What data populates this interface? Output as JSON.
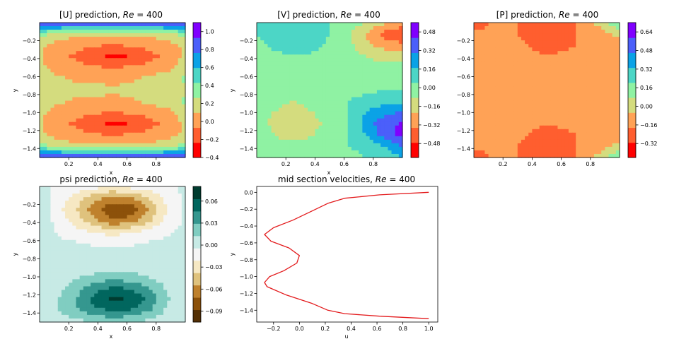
{
  "figure": {
    "background": "#ffffff"
  },
  "chart_data": [
    {
      "id": "u",
      "type": "heatmap",
      "title_prefix": "[U] prediction, ",
      "title_math": "Re",
      "title_suffix": " = 400",
      "xlabel": "x",
      "ylabel": "y",
      "xlim": [
        0.0,
        1.0
      ],
      "ylim": [
        -1.5,
        0.0
      ],
      "xticks": [
        0.2,
        0.4,
        0.6,
        0.8
      ],
      "xticklabels": [
        "0.2",
        "0.4",
        "0.6",
        "0.8"
      ],
      "yticks": [
        -0.2,
        -0.4,
        -0.6,
        -0.8,
        -1.0,
        -1.2,
        -1.4
      ],
      "yticklabels": [
        "−0.2",
        "−0.4",
        "−0.6",
        "−0.8",
        "−1.0",
        "−1.2",
        "−1.4"
      ],
      "colormap": "rainbow",
      "colorbar_range": [
        -0.4,
        1.1
      ],
      "colorbar_ticks": [
        1.0,
        0.8,
        0.6,
        0.4,
        0.2,
        0.0,
        -0.2,
        -0.4
      ],
      "colorbar_ticklabels": [
        "1.0",
        "0.8",
        "0.6",
        "0.4",
        "0.2",
        "0.0",
        "−0.2",
        "−0.4"
      ],
      "colorbar_colors": [
        "#ff0000",
        "#ff5e2f",
        "#ffa256",
        "#d4dc7e",
        "#8ff2a3",
        "#4cd6c6",
        "#0ba2e6",
        "#4b5ffa",
        "#8000ff"
      ],
      "field_range": [
        -0.4,
        1.1
      ],
      "field": [
        [
          1.0,
          1.05,
          1.0,
          1.0,
          1.0,
          1.0,
          1.0,
          1.05,
          1.0
        ],
        [
          0.35,
          0.2,
          0.12,
          0.1,
          0.1,
          0.1,
          0.12,
          0.2,
          0.35
        ],
        [
          0.1,
          0.0,
          -0.05,
          -0.1,
          -0.12,
          -0.1,
          -0.05,
          0.0,
          0.1
        ],
        [
          0.1,
          -0.05,
          -0.15,
          -0.25,
          -0.35,
          -0.3,
          -0.2,
          -0.05,
          0.1
        ],
        [
          0.1,
          0.0,
          -0.05,
          -0.1,
          -0.12,
          -0.1,
          -0.05,
          0.0,
          0.15
        ],
        [
          0.15,
          0.1,
          0.05,
          0.05,
          0.02,
          0.05,
          0.1,
          0.2,
          0.3
        ],
        [
          0.2,
          0.15,
          0.1,
          0.1,
          0.1,
          0.1,
          0.15,
          0.2,
          0.2
        ],
        [
          0.15,
          0.1,
          0.05,
          0.05,
          0.02,
          0.05,
          0.1,
          0.2,
          0.3
        ],
        [
          0.1,
          0.0,
          -0.05,
          -0.1,
          -0.12,
          -0.1,
          -0.05,
          0.0,
          0.15
        ],
        [
          0.1,
          -0.05,
          -0.15,
          -0.25,
          -0.35,
          -0.3,
          -0.2,
          -0.05,
          0.1
        ],
        [
          0.1,
          0.0,
          -0.05,
          -0.1,
          -0.12,
          -0.1,
          -0.05,
          0.0,
          0.1
        ],
        [
          0.35,
          0.2,
          0.12,
          0.1,
          0.1,
          0.1,
          0.12,
          0.2,
          0.35
        ],
        [
          1.0,
          1.05,
          1.0,
          1.0,
          1.0,
          1.0,
          1.0,
          1.05,
          1.0
        ]
      ]
    },
    {
      "id": "v",
      "type": "heatmap",
      "title_prefix": "[V] prediction, ",
      "title_math": "Re",
      "title_suffix": " = 400",
      "xlabel": "x",
      "ylabel": "y",
      "xlim": [
        0.0,
        1.0
      ],
      "ylim": [
        -1.5,
        0.0
      ],
      "xticks": [
        0.2,
        0.4,
        0.6,
        0.8
      ],
      "xticklabels": [
        "0.2",
        "0.4",
        "0.6",
        "0.8"
      ],
      "yticks": [
        -0.2,
        -0.4,
        -0.6,
        -0.8,
        -1.0,
        -1.2,
        -1.4
      ],
      "yticklabels": [
        "−0.2",
        "−0.4",
        "−0.6",
        "−0.8",
        "−1.0",
        "−1.2",
        "−1.4"
      ],
      "colormap": "rainbow",
      "colorbar_range": [
        -0.6,
        0.56
      ],
      "colorbar_ticks": [
        0.48,
        0.32,
        0.16,
        0.0,
        -0.16,
        -0.32,
        -0.48
      ],
      "colorbar_ticklabels": [
        "0.48",
        "0.32",
        "0.16",
        "0.00",
        "−0.16",
        "−0.32",
        "−0.48"
      ],
      "colorbar_colors": [
        "#ff0000",
        "#ff5e2f",
        "#ffa256",
        "#d4dc7e",
        "#8ff2a3",
        "#4cd6c6",
        "#0ba2e6",
        "#4b5ffa",
        "#8000ff"
      ],
      "field_range": [
        -0.6,
        0.56
      ],
      "field": [
        [
          0.1,
          0.12,
          0.12,
          0.1,
          0.05,
          0.0,
          -0.1,
          -0.2,
          -0.3
        ],
        [
          0.05,
          0.15,
          0.2,
          0.18,
          0.05,
          -0.05,
          -0.25,
          -0.45,
          -0.5
        ],
        [
          0.0,
          0.1,
          0.15,
          0.12,
          0.02,
          -0.05,
          -0.2,
          -0.3,
          -0.35
        ],
        [
          -0.05,
          0.0,
          0.05,
          0.02,
          0.0,
          -0.02,
          -0.1,
          -0.15,
          -0.15
        ],
        [
          -0.05,
          -0.05,
          -0.05,
          -0.02,
          0.0,
          0.0,
          -0.02,
          -0.05,
          -0.05
        ],
        [
          0.0,
          -0.05,
          -0.05,
          -0.05,
          0.0,
          0.0,
          0.0,
          0.0,
          0.0
        ],
        [
          0.0,
          -0.05,
          -0.05,
          -0.05,
          0.0,
          0.0,
          0.02,
          0.05,
          0.05
        ],
        [
          -0.05,
          -0.05,
          -0.1,
          -0.05,
          0.0,
          0.05,
          0.1,
          0.15,
          0.15
        ],
        [
          -0.05,
          -0.1,
          -0.15,
          -0.1,
          -0.02,
          0.05,
          0.2,
          0.3,
          0.35
        ],
        [
          -0.05,
          -0.12,
          -0.2,
          -0.15,
          -0.05,
          0.05,
          0.25,
          0.45,
          0.5
        ],
        [
          0.0,
          -0.1,
          -0.15,
          -0.1,
          -0.02,
          0.05,
          0.2,
          0.4,
          0.55
        ],
        [
          0.0,
          -0.05,
          -0.05,
          -0.05,
          0.0,
          0.05,
          0.1,
          0.2,
          0.35
        ],
        [
          0.0,
          0.0,
          0.0,
          0.0,
          0.0,
          0.0,
          0.05,
          0.1,
          0.2
        ]
      ]
    },
    {
      "id": "p",
      "type": "heatmap",
      "title_prefix": "[P] prediction, ",
      "title_math": "Re",
      "title_suffix": " = 400",
      "xlabel": "",
      "ylabel": "",
      "xlim": [
        0.0,
        1.0
      ],
      "ylim": [
        -1.5,
        0.0
      ],
      "xticks": [
        0.2,
        0.4,
        0.6,
        0.8
      ],
      "xticklabels": [
        "0.2",
        "0.4",
        "0.6",
        "0.8"
      ],
      "yticks": [
        -0.2,
        -0.4,
        -0.6,
        -0.8,
        -1.0,
        -1.2,
        -1.4
      ],
      "yticklabels": [
        "−0.2",
        "−0.4",
        "−0.6",
        "−0.8",
        "−1.0",
        "−1.2",
        "−1.4"
      ],
      "colormap": "rainbow",
      "colorbar_range": [
        -0.44,
        0.72
      ],
      "colorbar_ticks": [
        0.64,
        0.48,
        0.32,
        0.16,
        0.0,
        -0.16,
        -0.32
      ],
      "colorbar_ticklabels": [
        "0.64",
        "0.48",
        "0.32",
        "0.16",
        "0.00",
        "−0.16",
        "−0.32"
      ],
      "colorbar_colors": [
        "#ff0000",
        "#ff5e2f",
        "#ffa256",
        "#d4dc7e",
        "#8ff2a3",
        "#4cd6c6",
        "#0ba2e6",
        "#4b5ffa",
        "#8000ff"
      ],
      "field_range": [
        -0.44,
        0.72
      ],
      "field": [
        [
          -0.3,
          -0.2,
          -0.2,
          -0.25,
          -0.3,
          -0.25,
          -0.2,
          0.0,
          0.2
        ],
        [
          -0.2,
          -0.2,
          -0.2,
          -0.25,
          -0.3,
          -0.25,
          -0.2,
          -0.15,
          0.0
        ],
        [
          -0.2,
          -0.2,
          -0.2,
          -0.22,
          -0.3,
          -0.25,
          -0.2,
          -0.2,
          -0.2
        ],
        [
          -0.2,
          -0.2,
          -0.2,
          -0.2,
          -0.2,
          -0.2,
          -0.2,
          -0.2,
          -0.2
        ],
        [
          -0.2,
          -0.2,
          -0.2,
          -0.2,
          -0.2,
          -0.2,
          -0.2,
          -0.2,
          -0.2
        ],
        [
          -0.2,
          -0.2,
          -0.2,
          -0.2,
          -0.2,
          -0.2,
          -0.2,
          -0.2,
          -0.2
        ],
        [
          -0.2,
          -0.2,
          -0.2,
          -0.2,
          -0.2,
          -0.2,
          -0.2,
          -0.2,
          -0.2
        ],
        [
          -0.2,
          -0.2,
          -0.2,
          -0.2,
          -0.2,
          -0.2,
          -0.2,
          -0.2,
          -0.2
        ],
        [
          -0.2,
          -0.2,
          -0.2,
          -0.2,
          -0.2,
          -0.2,
          -0.2,
          -0.2,
          -0.2
        ],
        [
          -0.2,
          -0.2,
          -0.2,
          -0.2,
          -0.2,
          -0.2,
          -0.2,
          -0.2,
          -0.2
        ],
        [
          -0.2,
          -0.2,
          -0.2,
          -0.22,
          -0.3,
          -0.25,
          -0.2,
          -0.2,
          -0.2
        ],
        [
          -0.2,
          -0.2,
          -0.2,
          -0.25,
          -0.3,
          -0.25,
          -0.2,
          -0.15,
          0.0
        ],
        [
          -0.3,
          -0.2,
          -0.2,
          -0.25,
          -0.3,
          -0.25,
          -0.2,
          0.0,
          0.2
        ]
      ]
    },
    {
      "id": "psi",
      "type": "heatmap",
      "title_prefix": "psi prediction, ",
      "title_math": "Re",
      "title_suffix": " = 400",
      "xlabel": "x",
      "ylabel": "y",
      "xlim": [
        0.0,
        1.0
      ],
      "ylim": [
        -1.5,
        0.0
      ],
      "xticks": [
        0.2,
        0.4,
        0.6,
        0.8
      ],
      "xticklabels": [
        "0.2",
        "0.4",
        "0.6",
        "0.8"
      ],
      "yticks": [
        -0.2,
        -0.4,
        -0.6,
        -0.8,
        -1.0,
        -1.2,
        -1.4
      ],
      "yticklabels": [
        "−0.2",
        "−0.4",
        "−0.6",
        "−0.8",
        "−1.0",
        "−1.2",
        "−1.4"
      ],
      "colormap": "BrBG",
      "colorbar_range": [
        -0.105,
        0.08
      ],
      "colorbar_ticks": [
        0.06,
        0.03,
        0.0,
        -0.03,
        -0.06,
        -0.09
      ],
      "colorbar_ticklabels": [
        "0.06",
        "0.03",
        "0.00",
        "−0.03",
        "−0.06",
        "−0.09"
      ],
      "colorbar_colors": [
        "#543005",
        "#8c510a",
        "#bf812d",
        "#dfc27d",
        "#f6e8c3",
        "#f5f5f5",
        "#c7eae5",
        "#80cdc1",
        "#35978f",
        "#01665e",
        "#003c30"
      ],
      "field_range": [
        -0.105,
        0.08
      ],
      "field": [
        [
          0.0,
          -0.005,
          -0.01,
          -0.015,
          -0.02,
          -0.015,
          -0.01,
          -0.005,
          0.0
        ],
        [
          0.005,
          -0.01,
          -0.03,
          -0.05,
          -0.065,
          -0.06,
          -0.04,
          -0.015,
          0.0
        ],
        [
          0.01,
          -0.015,
          -0.04,
          -0.07,
          -0.095,
          -0.09,
          -0.06,
          -0.02,
          0.0
        ],
        [
          0.012,
          -0.01,
          -0.03,
          -0.055,
          -0.075,
          -0.07,
          -0.045,
          -0.015,
          0.0
        ],
        [
          0.008,
          -0.005,
          -0.015,
          -0.025,
          -0.03,
          -0.025,
          -0.015,
          -0.005,
          0.0
        ],
        [
          0.005,
          0.0,
          -0.002,
          -0.005,
          -0.005,
          -0.005,
          -0.002,
          0.0,
          0.0
        ],
        [
          0.0,
          0.0,
          0.0,
          0.0,
          0.0,
          0.0,
          0.0,
          0.0,
          0.0
        ],
        [
          0.0,
          0.0,
          0.002,
          0.004,
          0.005,
          0.004,
          0.002,
          0.0,
          0.0
        ],
        [
          0.0,
          0.005,
          0.012,
          0.02,
          0.025,
          0.022,
          0.015,
          0.005,
          0.0
        ],
        [
          0.0,
          0.01,
          0.025,
          0.045,
          0.055,
          0.05,
          0.035,
          0.012,
          0.0
        ],
        [
          0.005,
          0.015,
          0.035,
          0.06,
          0.075,
          0.07,
          0.05,
          0.018,
          0.0
        ],
        [
          0.01,
          0.015,
          0.03,
          0.045,
          0.055,
          0.05,
          0.035,
          0.012,
          0.0
        ],
        [
          0.005,
          0.005,
          0.01,
          0.015,
          0.02,
          0.015,
          0.01,
          0.005,
          0.0
        ]
      ]
    },
    {
      "id": "mid",
      "type": "line",
      "title_prefix": "mid section velocities, ",
      "title_math": "Re",
      "title_suffix": " = 400",
      "xlabel": "u",
      "ylabel": "y",
      "xlim": [
        -0.33,
        1.07
      ],
      "ylim": [
        -1.54,
        0.07
      ],
      "xticks": [
        -0.2,
        0.0,
        0.2,
        0.4,
        0.6,
        0.8,
        1.0
      ],
      "xticklabels": [
        "−0.2",
        "0.0",
        "0.2",
        "0.4",
        "0.6",
        "0.8",
        "1.0"
      ],
      "yticks": [
        0.0,
        -0.2,
        -0.4,
        -0.6,
        -0.8,
        -1.0,
        -1.2,
        -1.4
      ],
      "yticklabels": [
        "0.0",
        "−0.2",
        "−0.4",
        "−0.6",
        "−0.8",
        "−1.0",
        "−1.2",
        "−1.4"
      ],
      "line_color": "#e31a1c",
      "series": [
        {
          "x": [
            1.0,
            0.62,
            0.35,
            0.22,
            0.1,
            -0.05,
            -0.2,
            -0.27,
            -0.22,
            -0.08,
            0.0,
            -0.02,
            -0.12,
            -0.23,
            -0.27,
            -0.25,
            -0.1,
            0.1,
            0.22,
            0.35,
            0.62,
            1.0
          ],
          "y": [
            0.0,
            -0.03,
            -0.07,
            -0.13,
            -0.22,
            -0.33,
            -0.42,
            -0.5,
            -0.58,
            -0.66,
            -0.75,
            -0.84,
            -0.93,
            -1.0,
            -1.07,
            -1.12,
            -1.22,
            -1.32,
            -1.4,
            -1.44,
            -1.47,
            -1.5
          ]
        }
      ]
    }
  ]
}
